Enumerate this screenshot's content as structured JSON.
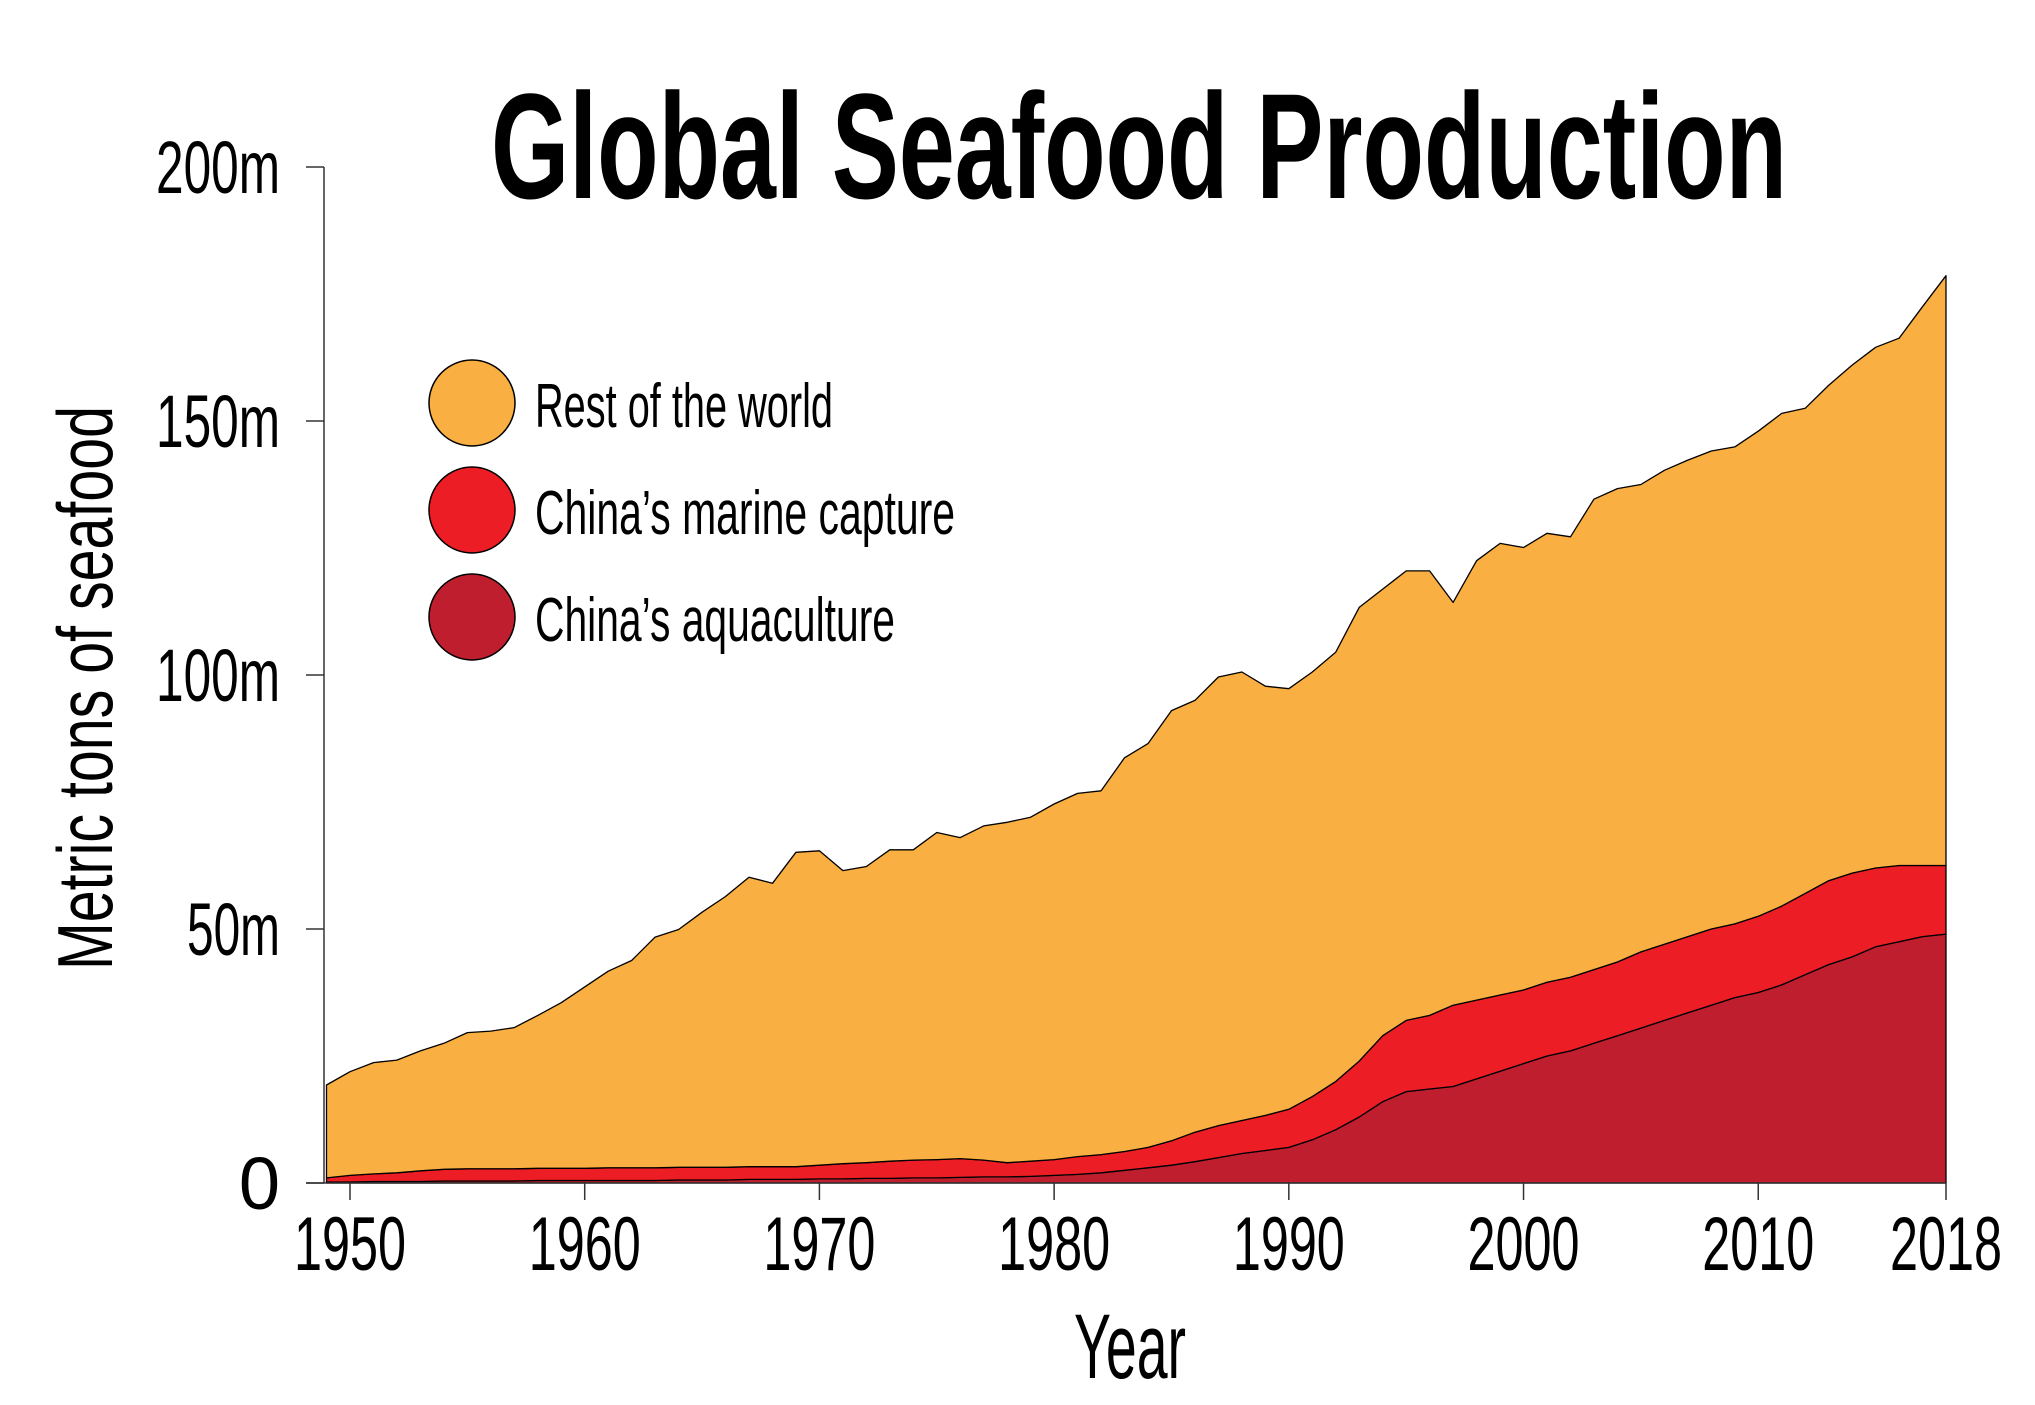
{
  "chart_data": {
    "type": "area",
    "stacked": true,
    "title": "Global Seafood Production",
    "xlabel": "Year",
    "ylabel": "Metric tons of seafood",
    "xlim": [
      1949,
      2018
    ],
    "ylim": [
      0,
      200
    ],
    "y_unit": "million metric tons",
    "y_ticks": [
      0,
      50,
      100,
      150,
      200
    ],
    "y_tick_labels": [
      "0",
      "50m",
      "100m",
      "150m",
      "200m"
    ],
    "x_ticks": [
      1950,
      1960,
      1970,
      1980,
      1990,
      2000,
      2010,
      2018
    ],
    "x_tick_labels": [
      "1950",
      "1960",
      "1970",
      "1980",
      "1990",
      "2000",
      "2010",
      "2018"
    ],
    "grid": false,
    "legend_placement": "top-left",
    "x_start": 1949,
    "series": [
      {
        "name": "China’s aquaculture",
        "color": "#BE1E2D",
        "values": [
          0.2,
          0.2,
          0.3,
          0.3,
          0.3,
          0.4,
          0.4,
          0.4,
          0.4,
          0.5,
          0.5,
          0.5,
          0.5,
          0.5,
          0.5,
          0.6,
          0.6,
          0.6,
          0.7,
          0.7,
          0.7,
          0.8,
          0.8,
          0.9,
          0.9,
          1.0,
          1.0,
          1.1,
          1.2,
          1.2,
          1.3,
          1.5,
          1.7,
          2.0,
          2.5,
          3.0,
          3.5,
          4.2,
          5.0,
          5.8,
          6.4,
          7.0,
          8.5,
          10.5,
          13,
          16,
          18,
          18.5,
          19,
          20.5,
          22,
          23.5,
          25,
          26,
          27.5,
          29,
          30.5,
          32,
          33.5,
          35,
          36.5,
          37.5,
          39,
          41,
          43,
          44.5,
          46.5,
          47.5,
          48.5,
          49
        ]
      },
      {
        "name": "China’s marine capture",
        "color": "#EC1D25",
        "values": [
          0.8,
          1.3,
          1.5,
          1.7,
          2.1,
          2.3,
          2.4,
          2.4,
          2.4,
          2.4,
          2.4,
          2.4,
          2.5,
          2.5,
          2.5,
          2.5,
          2.5,
          2.5,
          2.5,
          2.5,
          2.5,
          2.7,
          3.0,
          3.1,
          3.4,
          3.5,
          3.6,
          3.7,
          3.3,
          2.8,
          3.0,
          3.1,
          3.5,
          3.6,
          3.7,
          4.0,
          4.8,
          5.8,
          6.3,
          6.5,
          6.9,
          7.5,
          8.5,
          9.5,
          11,
          13,
          14,
          14.5,
          16,
          15.5,
          15,
          14.5,
          14.5,
          14.5,
          14.5,
          14.5,
          15,
          15,
          15,
          15,
          14.5,
          15,
          15.5,
          16,
          16.5,
          16.5,
          15.5,
          15,
          14,
          13.5
        ]
      },
      {
        "name": "Rest of the world",
        "color": "#F9AF42",
        "values": [
          18.3,
          20.4,
          21.9,
          22.2,
          23.6,
          24.8,
          26.8,
          27.1,
          27.8,
          30.1,
          32.6,
          35.7,
          38.7,
          40.8,
          45.4,
          46.8,
          50.2,
          53.3,
          57.0,
          55.8,
          61.9,
          61.9,
          57.7,
          58.3,
          61.3,
          61.1,
          64.4,
          63.2,
          65.8,
          67.0,
          67.7,
          70.0,
          71.5,
          71.6,
          77.5,
          79.5,
          84.7,
          85.0,
          88.3,
          88.3,
          84.5,
          82.8,
          83.6,
          84.5,
          89.3,
          87.9,
          88.5,
          87.5,
          79.3,
          86.5,
          88.9,
          87.1,
          88.4,
          86.7,
          92.6,
          93.2,
          92.0,
          93.3,
          93.8,
          94.1,
          93.9,
          95.5,
          97.0,
          95.5,
          97.5,
          100.0,
          102.5,
          103.8,
          110.0,
          116.1
        ]
      }
    ],
    "legend": [
      {
        "label": "Rest of the world",
        "color": "#F9AF42"
      },
      {
        "label": "China’s marine capture",
        "color": "#EC1D25"
      },
      {
        "label": "China’s aquaculture",
        "color": "#BE1E2D"
      }
    ]
  }
}
